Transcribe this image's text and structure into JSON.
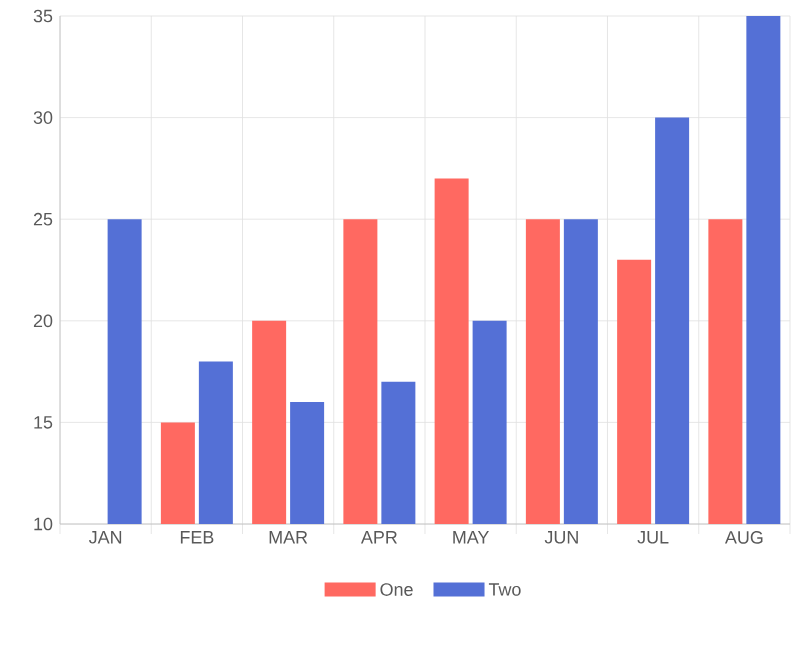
{
  "chart_data": {
    "type": "bar",
    "categories": [
      "JAN",
      "FEB",
      "MAR",
      "APR",
      "MAY",
      "JUN",
      "JUL",
      "AUG"
    ],
    "series": [
      {
        "name": "One",
        "color": "#ff6961",
        "values": [
          null,
          15,
          20,
          25,
          27,
          25,
          23,
          25
        ]
      },
      {
        "name": "Two",
        "color": "#5470d6",
        "values": [
          25,
          18,
          16,
          17,
          20,
          25,
          30,
          35
        ]
      }
    ],
    "ylim": [
      10,
      35
    ],
    "yticks": [
      10,
      15,
      20,
      25,
      30,
      35
    ],
    "grid": true,
    "legend": "bottom"
  }
}
